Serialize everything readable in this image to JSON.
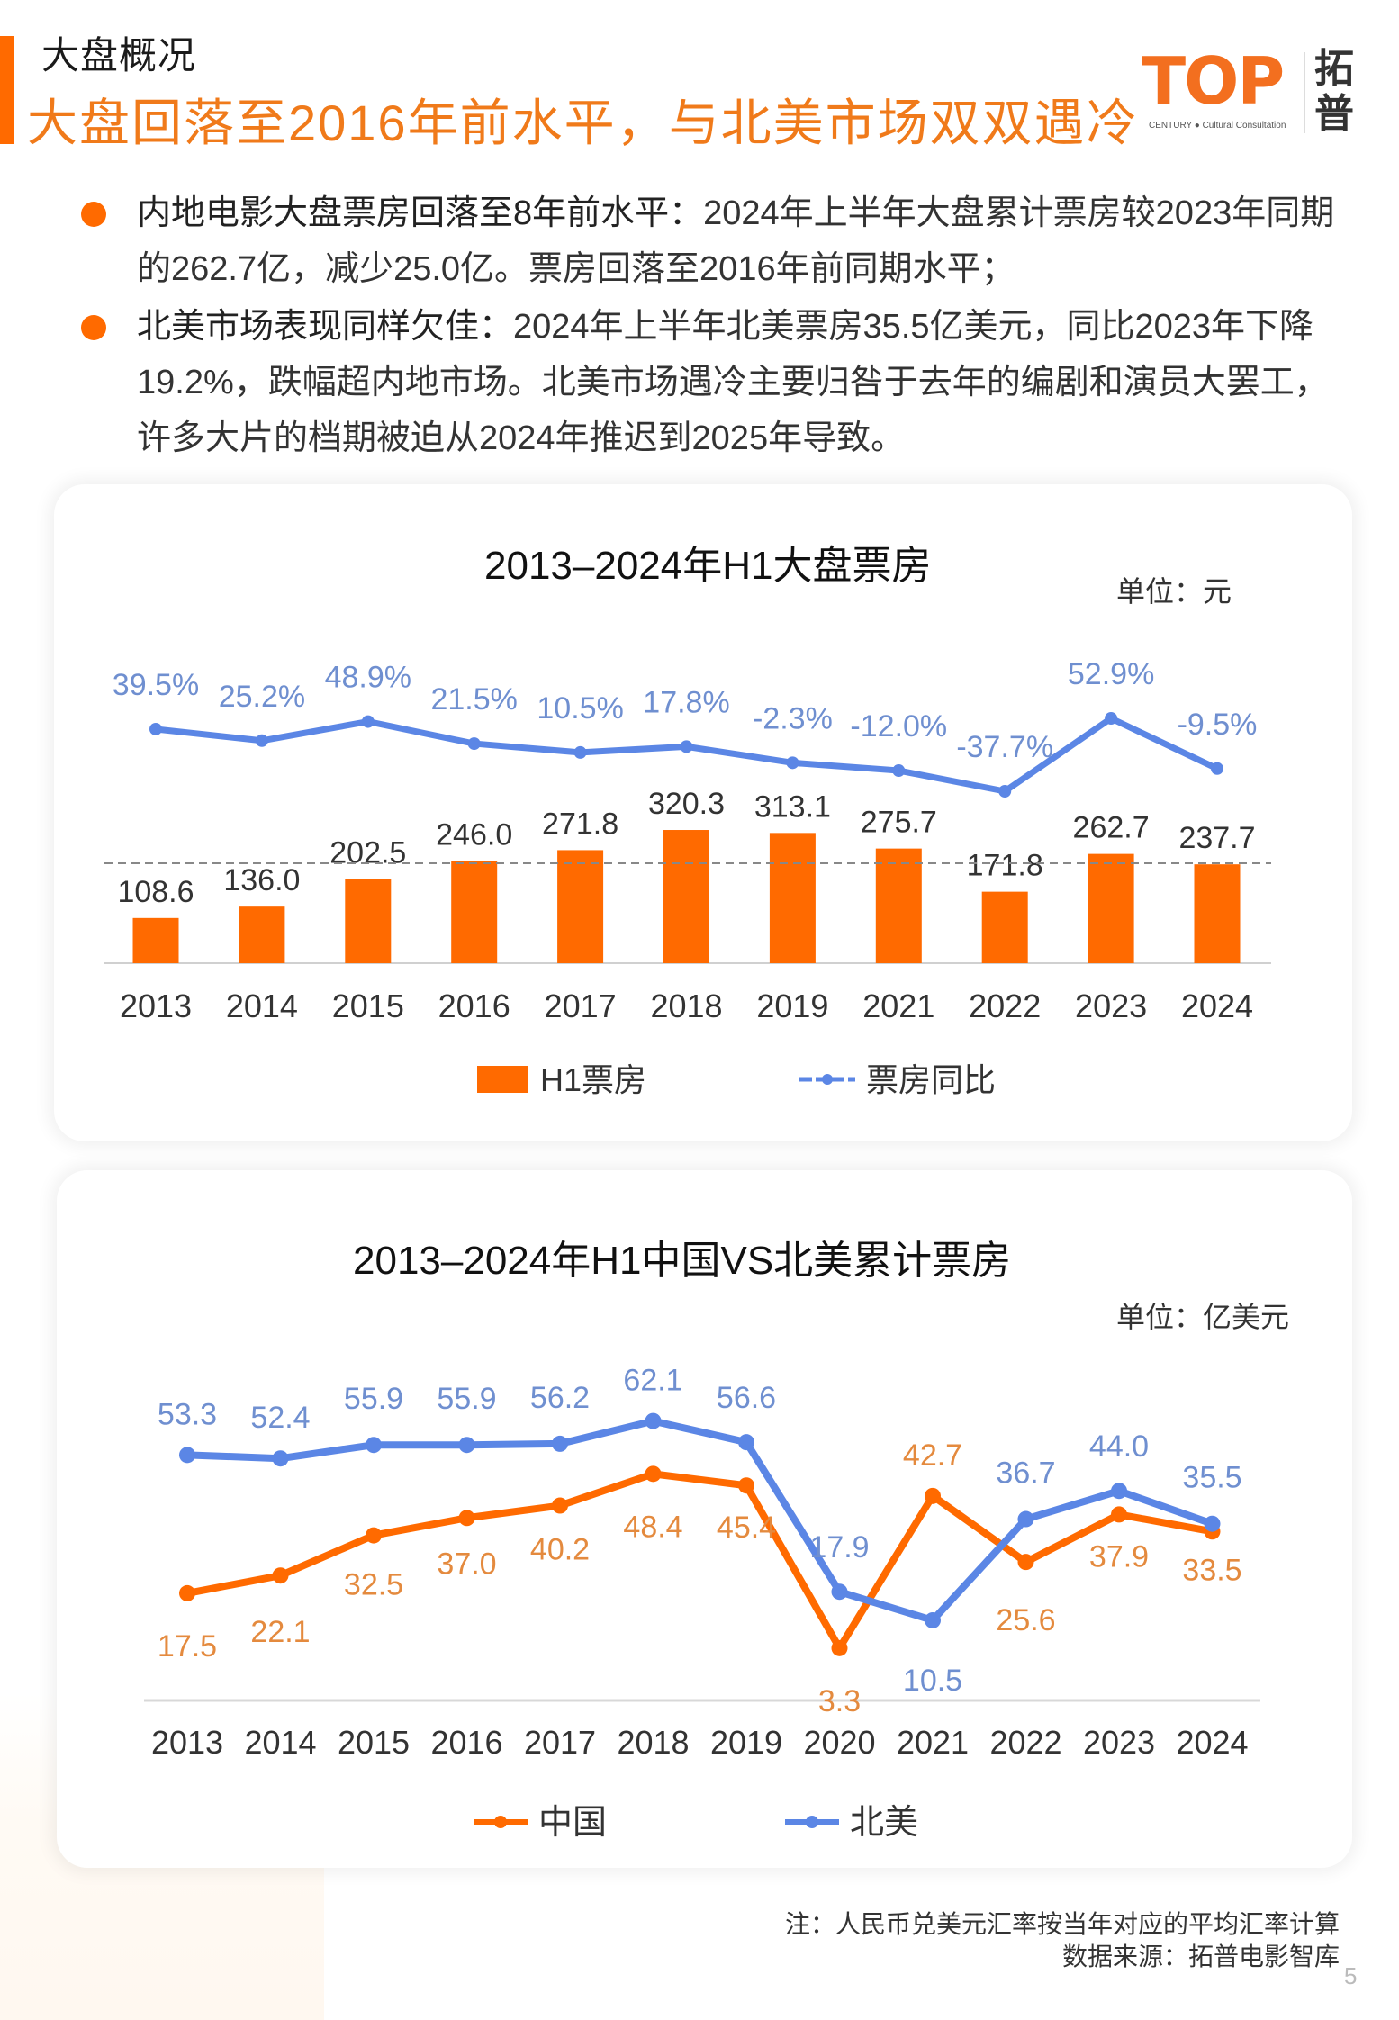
{
  "header": {
    "section_label": "大盘概况",
    "headline": "大盘回落至2016年前水平，与北美市场双双遇冷",
    "logo_top": "TOP",
    "logo_sub": "CENTURY ● Cultural Consultation",
    "logo_cn": "拓普"
  },
  "bullets": [
    {
      "lead": "内地电影大盘票房回落至8年前水平：",
      "text": "2024年上半年大盘累计票房较2023年同期的262.7亿，减少25.0亿。票房回落至2016年前同期水平；"
    },
    {
      "lead": "北美市场表现同样欠佳：",
      "text": "2024年上半年北美票房35.5亿美元，同比2023年下降19.2%，跌幅超内地市场。北美市场遇冷主要归咎于去年的编剧和演员大罢工，许多大片的档期被迫从2024年推迟到2025年导致。"
    }
  ],
  "colors": {
    "accent": "#ff6a00",
    "headline": "#f07a1a",
    "bar": "#ff6a00",
    "line_blue": "#5b86e5",
    "label_blue": "#6f8fd0",
    "label_orange": "#e48a3e"
  },
  "chart_data": [
    {
      "type": "bar+line",
      "title": "2013–2024年H1大盘票房",
      "unit": "单位：元",
      "categories": [
        "2013",
        "2014",
        "2015",
        "2016",
        "2017",
        "2018",
        "2019",
        "2021",
        "2022",
        "2023",
        "2024"
      ],
      "series": [
        {
          "name": "H1票房",
          "type": "bar",
          "values": [
            108.6,
            136.0,
            202.5,
            246.0,
            271.8,
            320.3,
            313.1,
            275.7,
            171.8,
            262.7,
            237.7
          ],
          "labels": [
            "108.6",
            "136.0",
            "202.5",
            "246.0",
            "271.8",
            "320.3",
            "313.1",
            "275.7",
            "171.8",
            "262.7",
            "237.7"
          ]
        },
        {
          "name": "票房同比",
          "type": "line",
          "values": [
            39.5,
            25.2,
            48.9,
            21.5,
            10.5,
            17.8,
            -2.3,
            -12.0,
            -37.7,
            52.9,
            -9.5
          ],
          "labels": [
            "39.5%",
            "25.2%",
            "48.9%",
            "21.5%",
            "10.5%",
            "17.8%",
            "-2.3%",
            "-12.0%",
            "-37.7%",
            "52.9%",
            "-9.5%"
          ]
        }
      ],
      "reference_line": {
        "style": "dashed",
        "approx_value": 237.7
      },
      "legend": [
        "H1票房",
        "票房同比"
      ],
      "legend_position": "bottom",
      "grid": false,
      "xlabel": "",
      "ylabel": ""
    },
    {
      "type": "line",
      "title": "2013–2024年H1中国VS北美累计票房",
      "unit": "单位：亿美元",
      "categories": [
        "2013",
        "2014",
        "2015",
        "2016",
        "2017",
        "2018",
        "2019",
        "2020",
        "2021",
        "2022",
        "2023",
        "2024"
      ],
      "series": [
        {
          "name": "中国",
          "values": [
            17.5,
            22.1,
            32.5,
            37.0,
            40.2,
            48.4,
            45.4,
            3.3,
            42.7,
            25.6,
            37.9,
            33.5
          ],
          "labels": [
            "17.5",
            "22.1",
            "32.5",
            "37.0",
            "40.2",
            "48.4",
            "45.4",
            "3.3",
            "42.7",
            "25.6",
            "37.9",
            "33.5"
          ]
        },
        {
          "name": "北美",
          "values": [
            53.3,
            52.4,
            55.9,
            55.9,
            56.2,
            62.1,
            56.6,
            17.9,
            10.5,
            36.7,
            44.0,
            35.5
          ],
          "labels": [
            "53.3",
            "52.4",
            "55.9",
            "55.9",
            "56.2",
            "62.1",
            "56.6",
            "17.9",
            "10.5",
            "36.7",
            "44.0",
            "35.5"
          ]
        }
      ],
      "legend": [
        "中国",
        "北美"
      ],
      "legend_position": "bottom",
      "grid": false,
      "xlabel": "",
      "ylabel": ""
    }
  ],
  "footer": {
    "note": "注：人民币兑美元汇率按当年对应的平均汇率计算",
    "source": "数据来源：拓普电影智库",
    "page_number": "5"
  }
}
